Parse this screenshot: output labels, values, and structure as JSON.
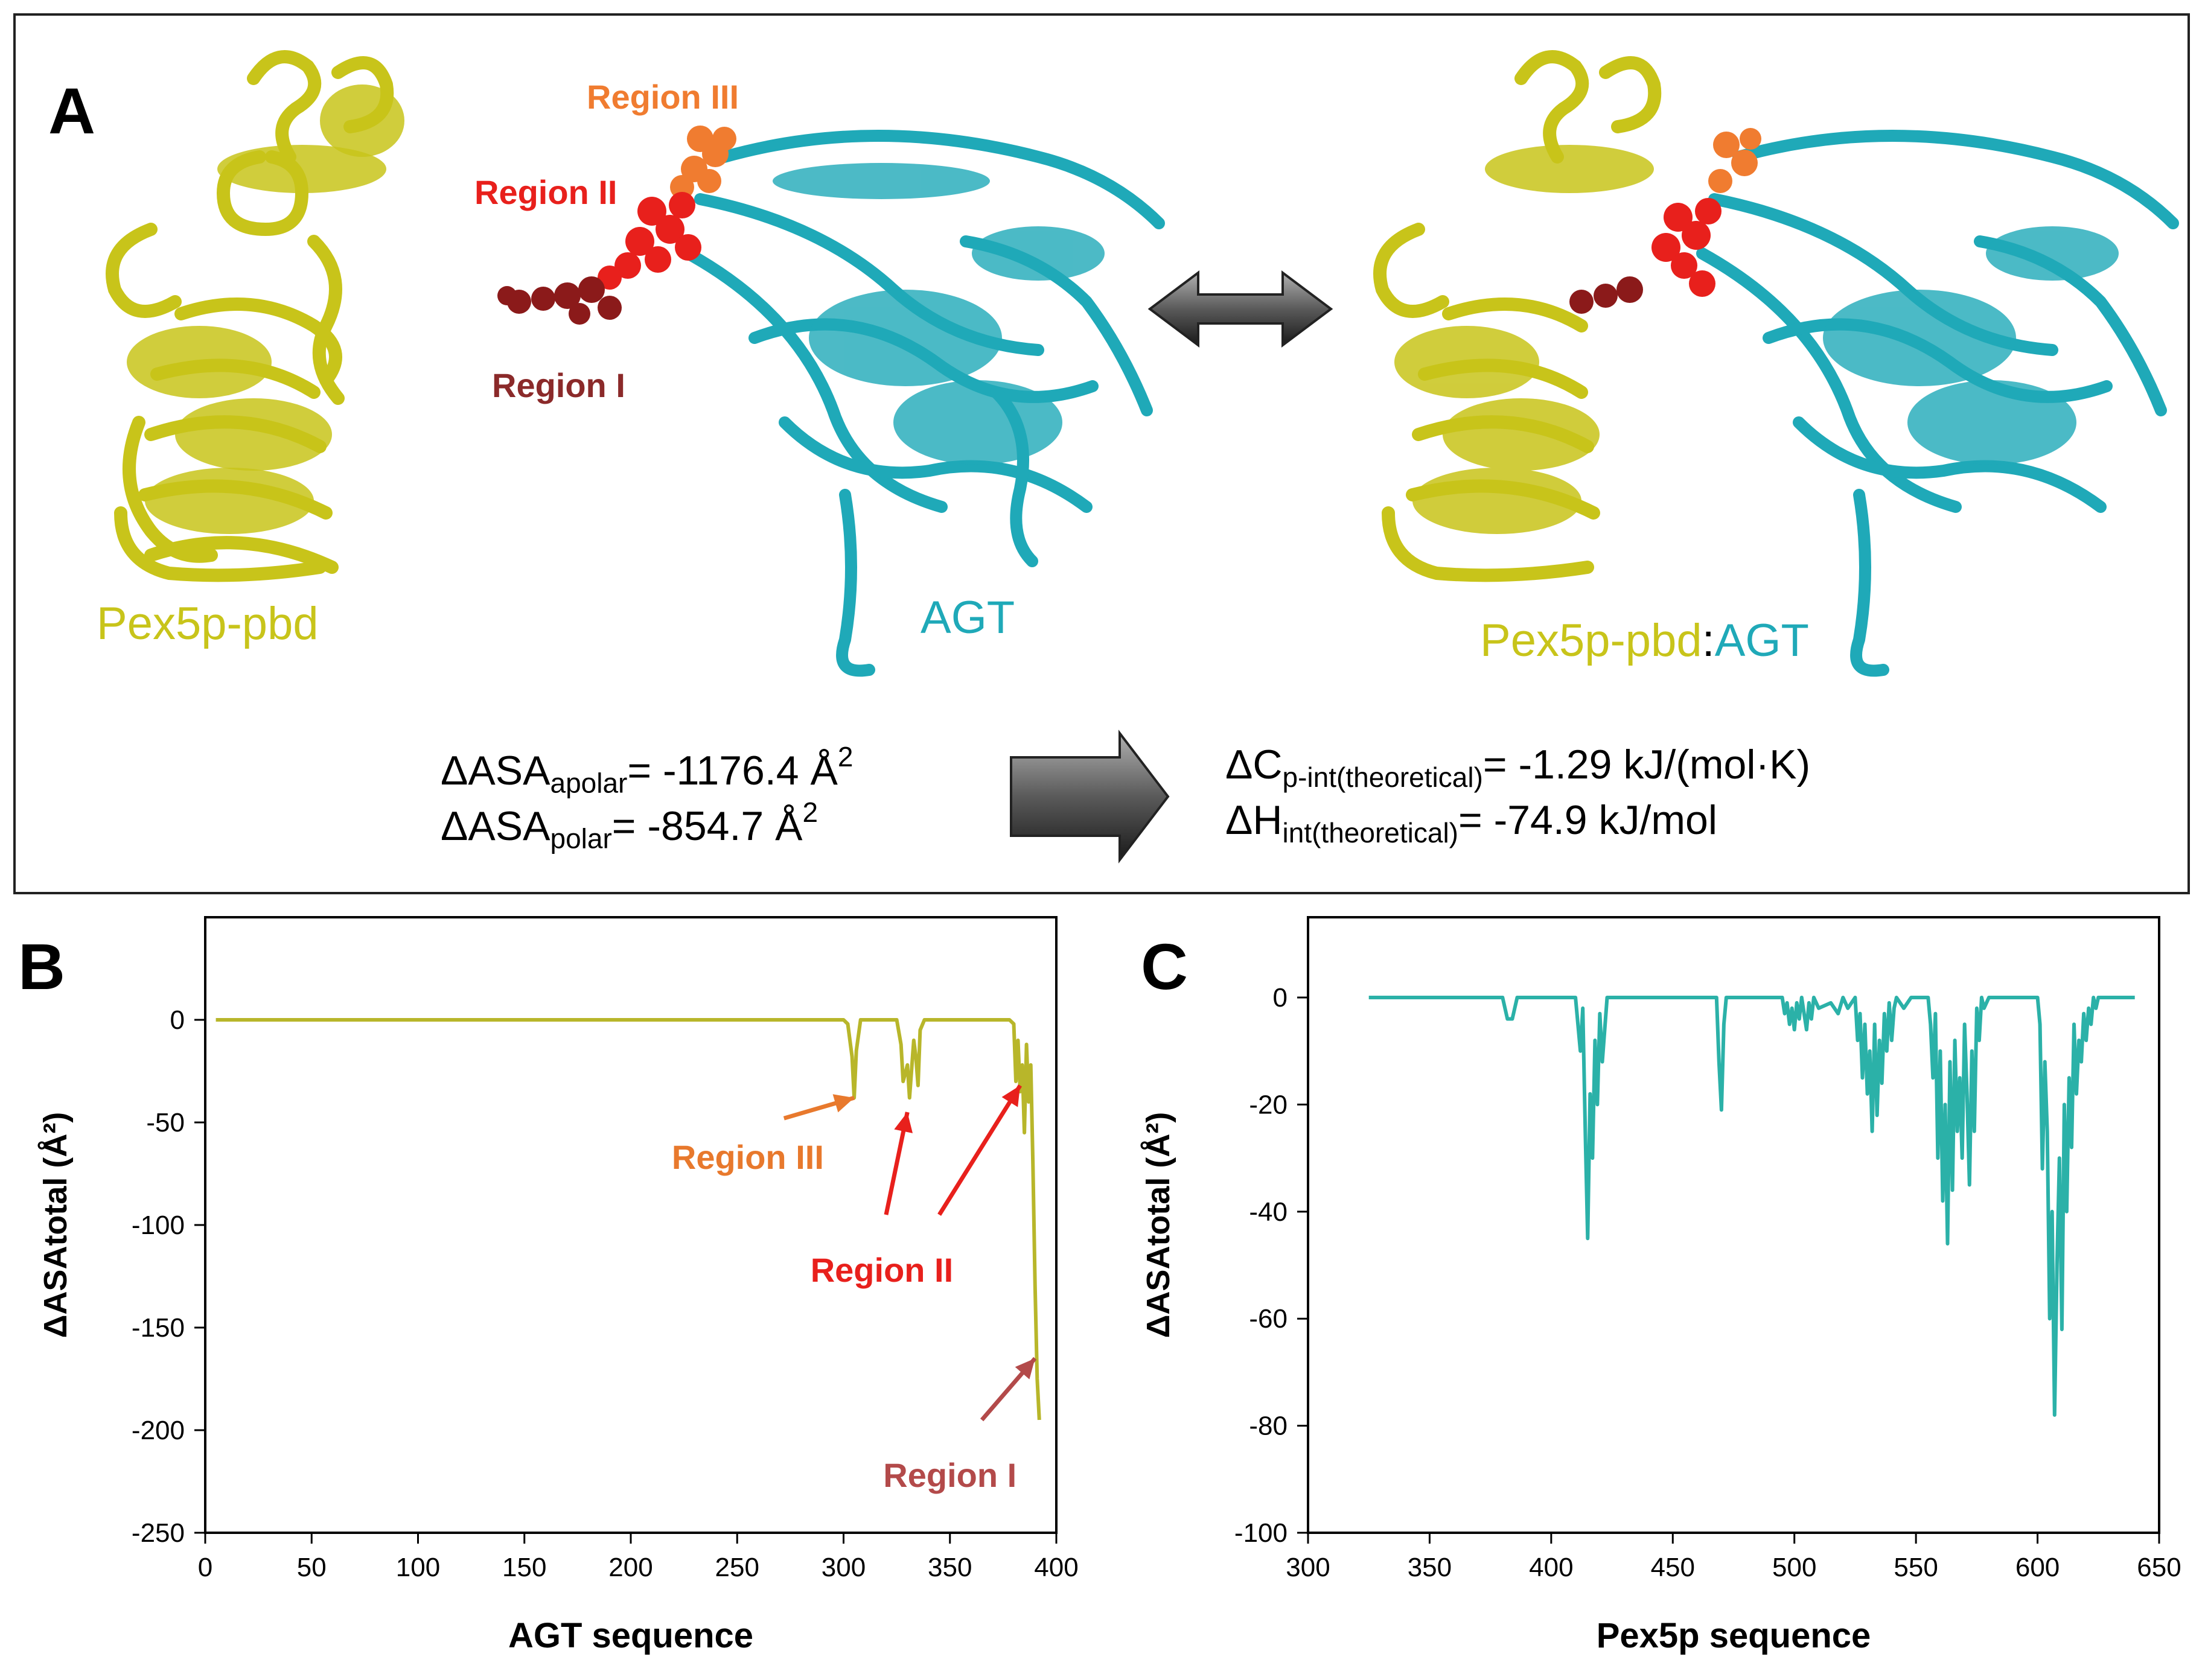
{
  "panel_a": {
    "letter": "A",
    "regions": {
      "region3": "Region III",
      "region2": "Region II",
      "region1": "Region I"
    },
    "labels": {
      "pex5p": "Pex5p-pbd",
      "agt": "AGT",
      "complex_left": "Pex5p-pbd",
      "complex_colon": ":",
      "complex_right": "AGT"
    },
    "formulas": {
      "asa_apolar": {
        "prefix": "ΔASA",
        "sub": "apolar",
        "value": "= -1176.4 Å",
        "sup": "2"
      },
      "asa_polar": {
        "prefix": "ΔASA",
        "sub": "polar",
        "value": "= -854.7 Å",
        "sup": "2"
      },
      "cp": {
        "prefix": "ΔC",
        "sub": "p-int(theoretical)",
        "value": "= -1.29 kJ/(mol·K)"
      },
      "dh": {
        "prefix": "ΔH",
        "sub": "int(theoretical)",
        "value": "= -74.9 kJ/mol"
      }
    },
    "colors": {
      "pex5p": "#c8c41a",
      "agt": "#1fa9b8",
      "region1": "#8b1a1a",
      "region2": "#e8201c",
      "region3": "#f07c30"
    }
  },
  "chart_data": [
    {
      "panel": "B",
      "type": "line",
      "xlabel": "AGT sequence",
      "ylabel": "ΔASAtotal (Å²)",
      "xlim": [
        0,
        400
      ],
      "ylim": [
        -250,
        50
      ],
      "xticks": [
        0,
        50,
        100,
        150,
        200,
        250,
        300,
        350,
        400
      ],
      "yticks": [
        0,
        -50,
        -100,
        -150,
        -200,
        -250
      ],
      "color": "#b8b62a",
      "series": [
        {
          "name": "AGT",
          "x": [
            5,
            300,
            302,
            304,
            305,
            306,
            308,
            310,
            325,
            327,
            328,
            330,
            331,
            333,
            334,
            335,
            336,
            338,
            340,
            378,
            380,
            381,
            382,
            383,
            384,
            385,
            386,
            387,
            388,
            389,
            390,
            391,
            392
          ],
          "y": [
            0,
            0,
            -2,
            -18,
            -38,
            -15,
            0,
            0,
            0,
            -12,
            -30,
            -22,
            -38,
            -10,
            -18,
            -32,
            -5,
            0,
            0,
            0,
            -2,
            -30,
            -10,
            -35,
            -22,
            -55,
            -12,
            -40,
            -22,
            -70,
            -130,
            -175,
            -195
          ]
        }
      ],
      "annotations": [
        {
          "text": "Region III",
          "color": "#e8792d",
          "x": 305,
          "y": -38
        },
        {
          "text": "Region II",
          "color": "#e8201c",
          "x": 330,
          "y": -45
        },
        {
          "text": "Region II",
          "color": "#e8201c",
          "x": 383,
          "y": -32
        },
        {
          "text": "Region I",
          "color": "#b34a4a",
          "x": 390,
          "y": -165
        }
      ]
    },
    {
      "panel": "C",
      "type": "line",
      "xlabel": "Pex5p sequence",
      "ylabel": "ΔASAtotal (Å²)",
      "xlim": [
        300,
        650
      ],
      "ylim": [
        -100,
        15
      ],
      "xticks": [
        300,
        350,
        400,
        450,
        500,
        550,
        600,
        650
      ],
      "yticks": [
        0,
        -20,
        -40,
        -60,
        -80,
        -100
      ],
      "color": "#2bb1a8",
      "series": [
        {
          "name": "Pex5p",
          "x": [
            325,
            380,
            382,
            384,
            386,
            410,
            412,
            413,
            414,
            415,
            416,
            417,
            418,
            419,
            420,
            421,
            423,
            468,
            469,
            470,
            471,
            472,
            495,
            496,
            497,
            498,
            499,
            500,
            501,
            502,
            503,
            504,
            505,
            506,
            507,
            508,
            510,
            515,
            518,
            520,
            522,
            525,
            526,
            527,
            528,
            529,
            530,
            531,
            532,
            533,
            534,
            535,
            536,
            537,
            538,
            539,
            540,
            541,
            542,
            545,
            548,
            555,
            556,
            557,
            558,
            559,
            560,
            561,
            562,
            563,
            564,
            565,
            566,
            567,
            568,
            569,
            570,
            571,
            572,
            573,
            574,
            575,
            576,
            577,
            578,
            580,
            600,
            601,
            602,
            603,
            604,
            605,
            606,
            607,
            608,
            609,
            610,
            611,
            612,
            613,
            614,
            615,
            616,
            617,
            618,
            619,
            620,
            621,
            622,
            623,
            624,
            625,
            640
          ],
          "y": [
            0,
            0,
            -4,
            -4,
            0,
            0,
            -10,
            -2,
            -25,
            -45,
            -18,
            -30,
            -8,
            -20,
            -3,
            -12,
            0,
            0,
            -12,
            -21,
            -5,
            0,
            0,
            -3,
            -1,
            -5,
            -2,
            -6,
            -1,
            -4,
            0,
            -3,
            -6,
            -1,
            -4,
            0,
            -2,
            -1,
            -3,
            0,
            -2,
            0,
            -8,
            -3,
            -15,
            -5,
            -18,
            -10,
            -25,
            -5,
            -22,
            -8,
            -16,
            -3,
            -10,
            -1,
            -8,
            -2,
            0,
            -2,
            0,
            0,
            -5,
            -15,
            -3,
            -30,
            -10,
            -38,
            -20,
            -46,
            -12,
            -36,
            -8,
            -25,
            -15,
            -30,
            -5,
            -18,
            -35,
            -10,
            -25,
            -2,
            -8,
            0,
            -2,
            0,
            0,
            -5,
            -32,
            -12,
            -25,
            -60,
            -40,
            -78,
            -50,
            -30,
            -62,
            -20,
            -40,
            -15,
            -28,
            -5,
            -18,
            -8,
            -12,
            -3,
            -8,
            -2,
            -5,
            0,
            -2,
            0,
            0
          ]
        }
      ]
    }
  ]
}
